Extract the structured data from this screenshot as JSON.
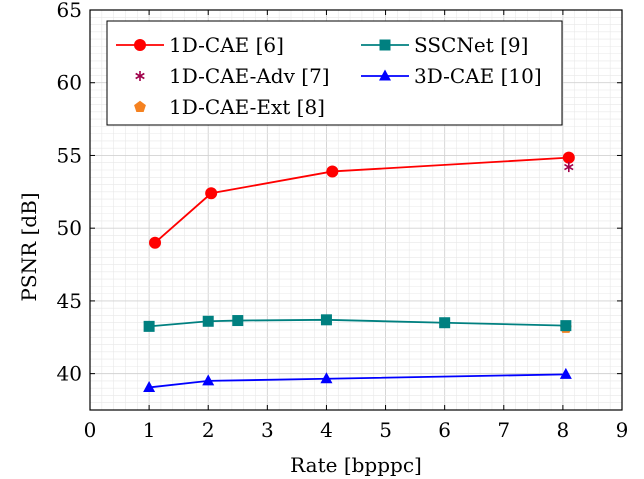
{
  "chart_data": {
    "type": "line",
    "xlabel": "Rate [bpppc]",
    "ylabel": "PSNR [dB]",
    "xlim": [
      0,
      9
    ],
    "ylim": [
      37.5,
      65
    ],
    "xticks": [
      "0",
      "1",
      "2",
      "3",
      "4",
      "5",
      "6",
      "7",
      "8",
      "9"
    ],
    "yticks": [
      "40",
      "45",
      "50",
      "55",
      "60",
      "65"
    ],
    "grid": true,
    "legend_position": "top-left",
    "series": [
      {
        "name": "1D-CAE [6]",
        "color": "#ff0000",
        "marker": "circle",
        "line": true,
        "points": [
          [
            1.1,
            49.0
          ],
          [
            2.05,
            52.4
          ],
          [
            4.1,
            53.9
          ],
          [
            8.1,
            54.85
          ]
        ]
      },
      {
        "name": "1D-CAE-Adv [7]",
        "color": "#a0004a",
        "marker": "asterisk",
        "line": false,
        "points": [
          [
            8.1,
            54.2
          ]
        ]
      },
      {
        "name": "1D-CAE-Ext [8]",
        "color": "#f58220",
        "marker": "pentagon",
        "line": false,
        "points": [
          [
            8.05,
            43.15
          ]
        ]
      },
      {
        "name": "SSCNet [9]",
        "color": "#008080",
        "marker": "square",
        "line": true,
        "points": [
          [
            1.0,
            43.25
          ],
          [
            2.0,
            43.6
          ],
          [
            2.5,
            43.65
          ],
          [
            4.0,
            43.7
          ],
          [
            6.0,
            43.5
          ],
          [
            8.05,
            43.3
          ]
        ]
      },
      {
        "name": "3D-CAE [10]",
        "color": "#0000ff",
        "marker": "triangle",
        "line": true,
        "points": [
          [
            1.0,
            39.05
          ],
          [
            2.0,
            39.5
          ],
          [
            4.0,
            39.65
          ],
          [
            8.05,
            39.95
          ]
        ]
      }
    ]
  }
}
